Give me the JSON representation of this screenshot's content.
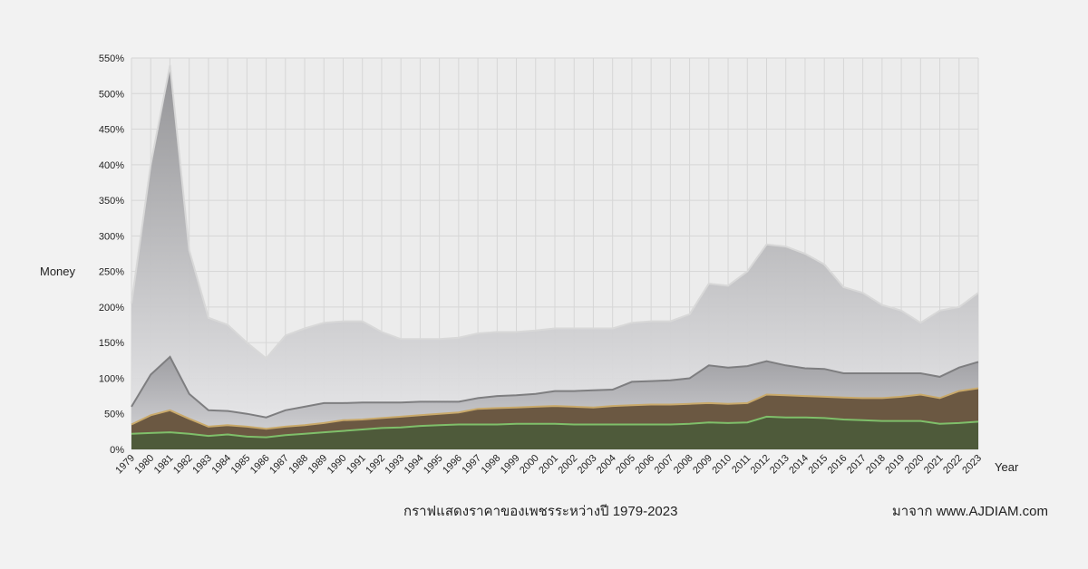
{
  "labels": {
    "y_axis": "Money",
    "x_axis": "Year",
    "caption": "กราฟแสดงราคาของเพชรระหว่างปี 1979-2023",
    "source": "มาจาก www.AJDIAM.com"
  },
  "chart_data": {
    "type": "area",
    "stacked": false,
    "grid": true,
    "x": [
      "1979",
      "1980",
      "1981",
      "1982",
      "1983",
      "1984",
      "1985",
      "1986",
      "1987",
      "1988",
      "1989",
      "1990",
      "1991",
      "1992",
      "1993",
      "1994",
      "1995",
      "1996",
      "1997",
      "1998",
      "1999",
      "2000",
      "2001",
      "2002",
      "2003",
      "2004",
      "2005",
      "2006",
      "2007",
      "2008",
      "2009",
      "2010",
      "2011",
      "2012",
      "2013",
      "2014",
      "2015",
      "2016",
      "2017",
      "2018",
      "2019",
      "2020",
      "2021",
      "2022",
      "2023"
    ],
    "y_ticks": [
      "0%",
      "50%",
      "100%",
      "150%",
      "200%",
      "250%",
      "300%",
      "350%",
      "400%",
      "450%",
      "500%",
      "550%"
    ],
    "ylim": [
      0,
      550
    ],
    "xlabel": "Year",
    "ylabel": "Money",
    "series": [
      {
        "color": "#c8c8ca",
        "line": "#d8d8d8",
        "values": [
          205,
          400,
          540,
          280,
          185,
          175,
          150,
          128,
          160,
          170,
          178,
          180,
          180,
          165,
          155,
          155,
          155,
          157,
          163,
          165,
          165,
          167,
          170,
          170,
          170,
          170,
          178,
          180,
          180,
          190,
          233,
          230,
          250,
          288,
          285,
          275,
          260,
          228,
          220,
          203,
          195,
          178,
          195,
          200,
          220
        ]
      },
      {
        "color": "#9a9a9c",
        "line": "#7e7e80",
        "values": [
          60,
          105,
          130,
          78,
          55,
          54,
          50,
          45,
          55,
          60,
          65,
          65,
          66,
          66,
          66,
          67,
          67,
          67,
          72,
          75,
          76,
          78,
          82,
          82,
          83,
          84,
          95,
          96,
          97,
          100,
          118,
          115,
          117,
          124,
          118,
          114,
          113,
          107,
          107,
          107,
          107,
          107,
          102,
          115,
          123
        ]
      },
      {
        "color": "#6b5842",
        "line": "#c9a96a",
        "values": [
          35,
          48,
          55,
          43,
          32,
          34,
          32,
          29,
          32,
          34,
          37,
          41,
          42,
          44,
          46,
          48,
          50,
          52,
          57,
          58,
          59,
          60,
          61,
          60,
          59,
          61,
          62,
          63,
          63,
          64,
          65,
          64,
          65,
          77,
          76,
          75,
          74,
          73,
          72,
          72,
          74,
          77,
          72,
          82,
          86
        ]
      },
      {
        "color": "#4e5a3a",
        "line": "#7fbf6a",
        "values": [
          22,
          23,
          24,
          22,
          19,
          21,
          18,
          17,
          20,
          22,
          24,
          26,
          28,
          30,
          31,
          33,
          34,
          35,
          35,
          35,
          36,
          36,
          36,
          35,
          35,
          35,
          35,
          35,
          35,
          36,
          38,
          37,
          38,
          46,
          45,
          45,
          44,
          42,
          41,
          40,
          40,
          40,
          36,
          37,
          39
        ]
      }
    ]
  }
}
